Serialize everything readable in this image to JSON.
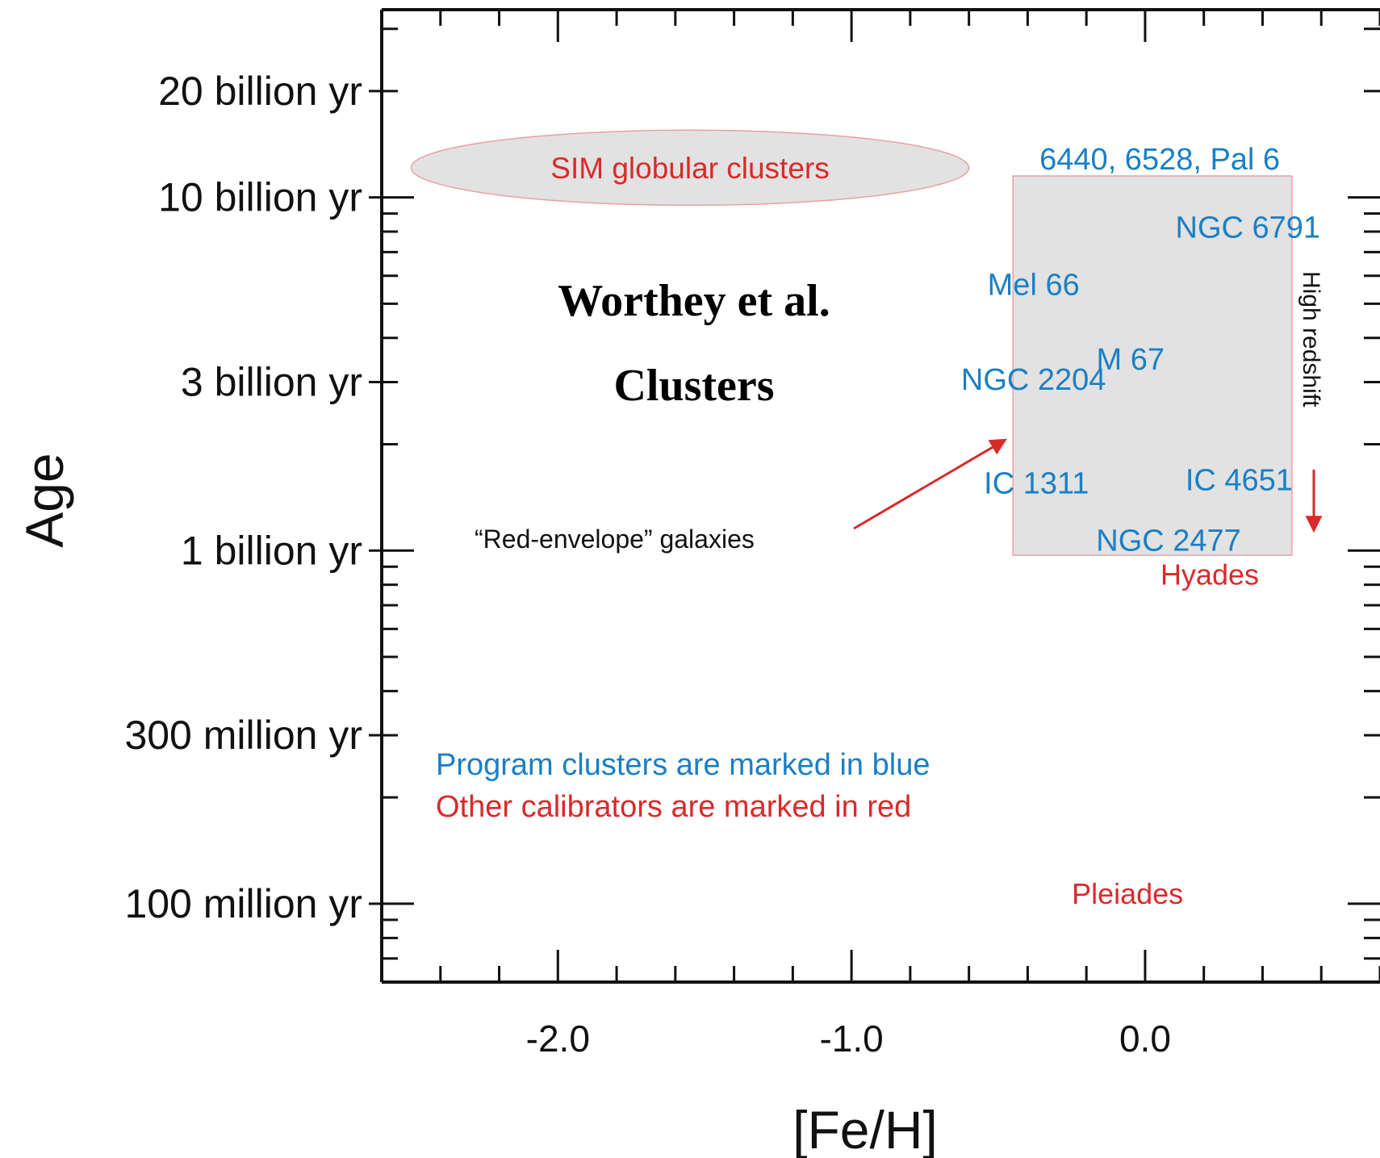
{
  "chart_data": {
    "type": "scatter",
    "title": "",
    "xlabel": "[Fe/H]",
    "ylabel": "Age",
    "x_ticks": [
      {
        "value": -2.0,
        "label": "-2.0"
      },
      {
        "value": -1.0,
        "label": "-1.0"
      },
      {
        "value": 0.0,
        "label": "0.0"
      }
    ],
    "x_minor_step": 0.2,
    "y_scale": "log",
    "y_unit": "yr",
    "y_ticks": [
      {
        "value": 20000000000,
        "label": "20 billion yr"
      },
      {
        "value": 10000000000,
        "label": "10 billion yr"
      },
      {
        "value": 3000000000,
        "label": "3 billion yr"
      },
      {
        "value": 1000000000,
        "label": "1 billion yr"
      },
      {
        "value": 300000000,
        "label": "300 million yr"
      },
      {
        "value": 100000000,
        "label": "100 million yr"
      }
    ],
    "xlim": [
      -2.6,
      0.8
    ],
    "ylim": [
      60000000,
      34000000000
    ],
    "grid": false,
    "colors": {
      "program": "#1a7fc4",
      "calibrator": "#d92a2a",
      "shade": "#e2e2e2",
      "axis": "#111111"
    },
    "program_clusters": [
      {
        "label": "NGC 6791",
        "feh": 0.35,
        "age": 7700000000
      },
      {
        "label": "Mel 66",
        "feh": -0.38,
        "age": 5300000000
      },
      {
        "label": "M 67",
        "feh": -0.05,
        "age": 3250000000
      },
      {
        "label": "NGC 2204",
        "feh": -0.38,
        "age": 2850000000
      },
      {
        "label": "IC 1311",
        "feh": -0.37,
        "age": 1450000000
      },
      {
        "label": "IC 4651",
        "feh": 0.32,
        "age": 1480000000
      },
      {
        "label": "NGC 2477",
        "feh": 0.08,
        "age": 1000000000
      },
      {
        "label": "6440, 6528, Pal 6",
        "feh": 0.05,
        "age": 12000000000
      }
    ],
    "calibrators": [
      {
        "label": "Hyades",
        "feh": 0.22,
        "age": 800000000
      },
      {
        "label": "Pleiades",
        "feh": -0.06,
        "age": 100000000
      }
    ],
    "regions": [
      {
        "label": "SIM globular clusters",
        "shape": "ellipse",
        "feh_range": [
          -2.5,
          -0.6
        ],
        "age_range": [
          9500000000,
          15500000000
        ]
      },
      {
        "label": "",
        "shape": "rect",
        "feh_range": [
          -0.45,
          0.5
        ],
        "age_range": [
          970000000,
          11500000000
        ]
      }
    ],
    "annotations": [
      {
        "text": "Worthey et al.",
        "style": "title-serif"
      },
      {
        "text": "Clusters",
        "style": "title-serif"
      },
      {
        "text": "“Red-envelope” galaxies",
        "arrow_to": {
          "feh": -0.48,
          "age": 2050000000
        }
      },
      {
        "text": "High redshift",
        "arrow": "down"
      },
      {
        "text": "Program clusters are marked in blue",
        "color": "program"
      },
      {
        "text": "Other calibrators are marked in red",
        "color": "calibrator"
      }
    ]
  }
}
